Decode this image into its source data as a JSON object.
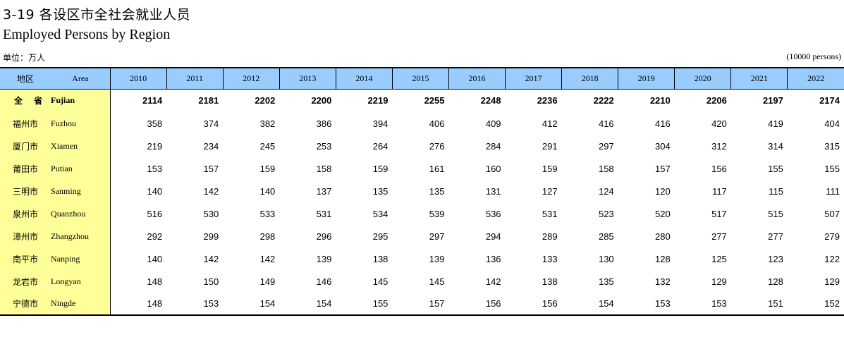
{
  "title_cn": "3-19 各设区市全社会就业人员",
  "title_en": "Employed Persons by Region",
  "unit_cn": "单位：万人",
  "unit_en": "(10000 persons)",
  "header": {
    "region": "地区",
    "area": "Area",
    "years": [
      "2010",
      "2011",
      "2012",
      "2013",
      "2014",
      "2015",
      "2016",
      "2017",
      "2018",
      "2019",
      "2020",
      "2021",
      "2022"
    ]
  },
  "rows": [
    {
      "cn": "全 省",
      "en": "Fujian",
      "values": [
        "2114",
        "2181",
        "2202",
        "2200",
        "2219",
        "2255",
        "2248",
        "2236",
        "2222",
        "2210",
        "2206",
        "2197",
        "2174"
      ]
    },
    {
      "cn": "福州市",
      "en": "Fuzhou",
      "values": [
        "358",
        "374",
        "382",
        "386",
        "394",
        "406",
        "409",
        "412",
        "416",
        "416",
        "420",
        "419",
        "404"
      ]
    },
    {
      "cn": "厦门市",
      "en": "Xiamen",
      "values": [
        "219",
        "234",
        "245",
        "253",
        "264",
        "276",
        "284",
        "291",
        "297",
        "304",
        "312",
        "314",
        "315"
      ]
    },
    {
      "cn": "莆田市",
      "en": "Putian",
      "values": [
        "153",
        "157",
        "159",
        "158",
        "159",
        "161",
        "160",
        "159",
        "158",
        "157",
        "156",
        "155",
        "155"
      ]
    },
    {
      "cn": "三明市",
      "en": "Sanming",
      "values": [
        "140",
        "142",
        "140",
        "137",
        "135",
        "135",
        "131",
        "127",
        "124",
        "120",
        "117",
        "115",
        "111"
      ]
    },
    {
      "cn": "泉州市",
      "en": "Quanzhou",
      "values": [
        "516",
        "530",
        "533",
        "531",
        "534",
        "539",
        "536",
        "531",
        "523",
        "520",
        "517",
        "515",
        "507"
      ]
    },
    {
      "cn": "漳州市",
      "en": "Zhangzhou",
      "values": [
        "292",
        "299",
        "298",
        "296",
        "295",
        "297",
        "294",
        "289",
        "285",
        "280",
        "277",
        "277",
        "279"
      ]
    },
    {
      "cn": "南平市",
      "en": "Nanping",
      "values": [
        "140",
        "142",
        "142",
        "139",
        "138",
        "139",
        "136",
        "133",
        "130",
        "128",
        "125",
        "123",
        "122"
      ]
    },
    {
      "cn": "龙岩市",
      "en": "Longyan",
      "values": [
        "148",
        "150",
        "149",
        "146",
        "145",
        "145",
        "142",
        "138",
        "135",
        "132",
        "129",
        "128",
        "129"
      ]
    },
    {
      "cn": "宁德市",
      "en": "Ningde",
      "values": [
        "148",
        "153",
        "154",
        "154",
        "155",
        "157",
        "156",
        "156",
        "154",
        "153",
        "153",
        "151",
        "152"
      ]
    }
  ]
}
